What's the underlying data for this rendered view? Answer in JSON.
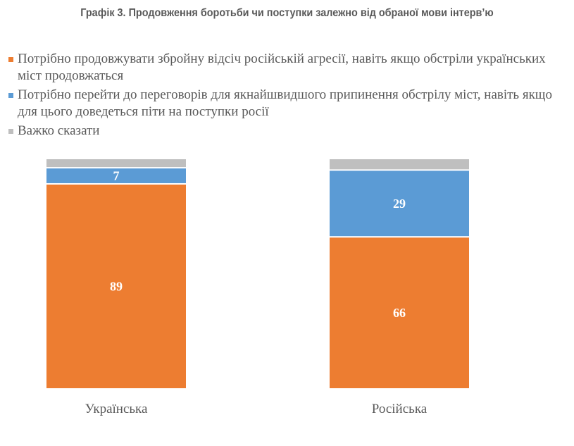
{
  "chart_data": {
    "type": "bar",
    "stacked": true,
    "title": "Графік 3. Продовження боротьби чи поступки залежно від обраної мови інтерв’ю",
    "categories": [
      "Українська",
      "Російська"
    ],
    "series": [
      {
        "name": "Потрібно продовжувати збройну відсіч російській агресії, навіть якщо обстріли українських міст продовжаться",
        "color": "#ED7D31",
        "values": [
          89,
          66
        ],
        "show_labels": true
      },
      {
        "name": "Потрібно перейти до переговорів для якнайшвидшого припинення обстрілу міст, навіть якщо для цього доведеться піти на поступки росії",
        "color": "#5B9BD5",
        "values": [
          7,
          29
        ],
        "show_labels": true
      },
      {
        "name": "Важко сказати",
        "color": "#BFBFBF",
        "values": [
          4,
          5
        ],
        "show_labels": false
      }
    ],
    "legend_position": "top",
    "grid": false,
    "ylim": [
      0,
      100
    ]
  }
}
